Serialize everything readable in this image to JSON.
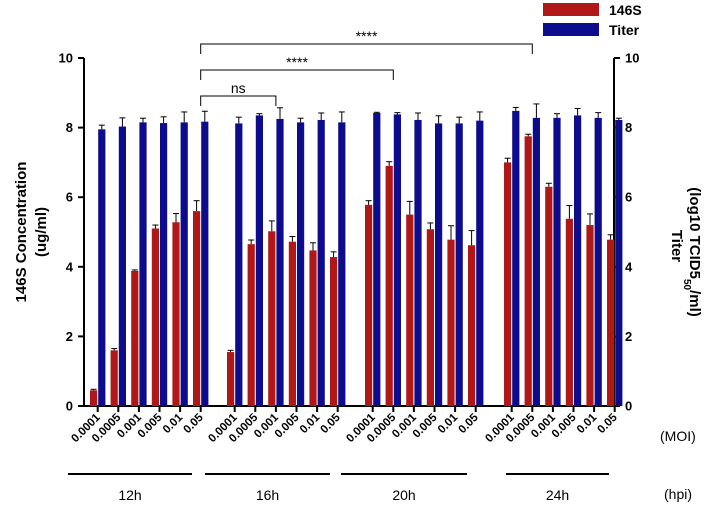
{
  "chart_data": {
    "type": "bar",
    "title": "",
    "ylabel": [
      "146S Concentration",
      "(ug/ml)"
    ],
    "y2label": [
      "Titer",
      "(log10 TCID50/ml)"
    ],
    "ylim": [
      0,
      10
    ],
    "y2lim": [
      0,
      10
    ],
    "yticks": [
      "0",
      "2",
      "4",
      "6",
      "8",
      "10"
    ],
    "y2ticks": [
      "0",
      "2",
      "4",
      "6",
      "8",
      "10"
    ],
    "x_unit_label": "(MOI)",
    "group_unit_label": "(hpi)",
    "categories": [
      "0.0001",
      "0.0005",
      "0.001",
      "0.005",
      "0.01",
      "0.05"
    ],
    "groups": [
      "12h",
      "16h",
      "20h",
      "24h"
    ],
    "series": [
      {
        "name": "146S",
        "color": "#b01818",
        "values": [
          [
            0.45,
            1.6,
            3.88,
            5.1,
            5.28,
            5.6
          ],
          [
            1.55,
            4.65,
            5.02,
            4.72,
            4.47,
            4.28
          ],
          [
            5.78,
            6.9,
            5.5,
            5.08,
            4.78,
            4.62
          ],
          [
            7.0,
            7.75,
            6.3,
            5.38,
            5.2,
            4.78
          ]
        ],
        "errors": [
          [
            0.03,
            0.05,
            0.03,
            0.1,
            0.25,
            0.3
          ],
          [
            0.05,
            0.12,
            0.3,
            0.15,
            0.22,
            0.15
          ],
          [
            0.12,
            0.12,
            0.38,
            0.18,
            0.4,
            0.42
          ],
          [
            0.12,
            0.06,
            0.1,
            0.38,
            0.32,
            0.14
          ]
        ]
      },
      {
        "name": "Titer",
        "color": "#0c0c8c",
        "values": [
          [
            7.95,
            8.03,
            8.15,
            8.13,
            8.15,
            8.17
          ],
          [
            8.12,
            8.35,
            8.25,
            8.15,
            8.22,
            8.15
          ],
          [
            8.42,
            8.38,
            8.22,
            8.12,
            8.12,
            8.2
          ],
          [
            8.48,
            8.28,
            8.28,
            8.35,
            8.28,
            8.22
          ]
        ],
        "errors": [
          [
            0.12,
            0.25,
            0.12,
            0.18,
            0.3,
            0.3
          ],
          [
            0.18,
            0.05,
            0.32,
            0.12,
            0.2,
            0.3
          ],
          [
            0.02,
            0.05,
            0.2,
            0.22,
            0.18,
            0.25
          ],
          [
            0.1,
            0.4,
            0.12,
            0.2,
            0.15,
            0.05
          ]
        ]
      }
    ],
    "annotations": [
      {
        "label": "****",
        "from": "12h 0.05",
        "to": "24h 0.0005"
      },
      {
        "label": "****",
        "from": "12h 0.05",
        "to": "20h 0.0005"
      },
      {
        "label": "ns",
        "from": "12h 0.05",
        "to": "16h 0.001"
      }
    ],
    "legend": {
      "position": "top-right",
      "entries": [
        "146S",
        "Titer"
      ]
    }
  }
}
